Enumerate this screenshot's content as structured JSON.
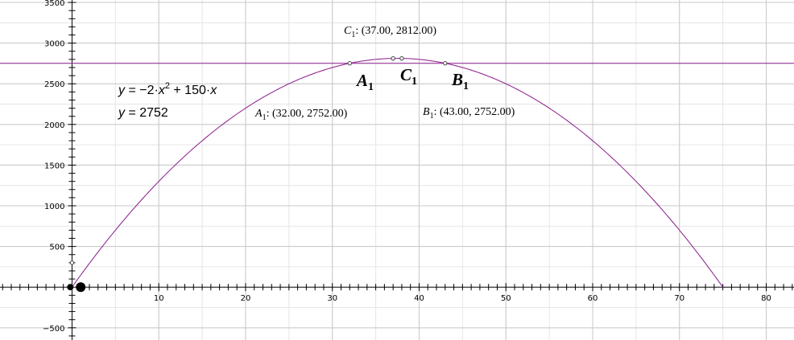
{
  "chart_data": {
    "type": "line",
    "xlim": [
      -8.3,
      83.2
    ],
    "ylim": [
      -650,
      3530
    ],
    "grid": true,
    "x_ticks": [
      10,
      20,
      30,
      40,
      50,
      60,
      70,
      80
    ],
    "y_ticks": [
      -500,
      500,
      1000,
      1500,
      2000,
      2500,
      3000,
      3500
    ],
    "x_tick_labels": [
      "10",
      "20",
      "30",
      "40",
      "50",
      "60",
      "70",
      "80"
    ],
    "y_tick_labels": [
      "−500",
      "500",
      "1000",
      "1500",
      "2000",
      "2500",
      "3000",
      "3500"
    ],
    "series": [
      {
        "kind": "parabola",
        "a": -2,
        "b": 150,
        "c": 0,
        "x_range": [
          0,
          75
        ],
        "color": "#8b1a8b"
      },
      {
        "kind": "horizontal",
        "y": 2752,
        "color": "#8b1a8b"
      }
    ],
    "equations": [
      {
        "y": "y",
        "eq": " = −2·",
        "var": "x",
        "exp": "2",
        "rest": " + 150·",
        "var2": "x"
      },
      {
        "y": "y",
        "eq": " = 2752",
        "var": "",
        "exp": "",
        "rest": "",
        "var2": ""
      }
    ],
    "points": [
      {
        "name": "A",
        "sub": "1",
        "x": 32,
        "y": 2752,
        "coord": ": (32.00, 2752.00)"
      },
      {
        "name": "B",
        "sub": "1",
        "x": 43,
        "y": 2752,
        "coord": ": (43.00, 2752.00)"
      },
      {
        "name": "C",
        "sub": "1",
        "x": 37,
        "y": 2812,
        "coord": ": (37.00, 2812.00)"
      }
    ],
    "extra_points": [
      {
        "x": 38,
        "y": 2812,
        "style": "open"
      },
      {
        "x": 0,
        "y": 300,
        "style": "open"
      },
      {
        "x": -0.2,
        "y": 0,
        "style": "filled-small"
      },
      {
        "x": 1,
        "y": 0,
        "style": "filled-large"
      }
    ]
  }
}
